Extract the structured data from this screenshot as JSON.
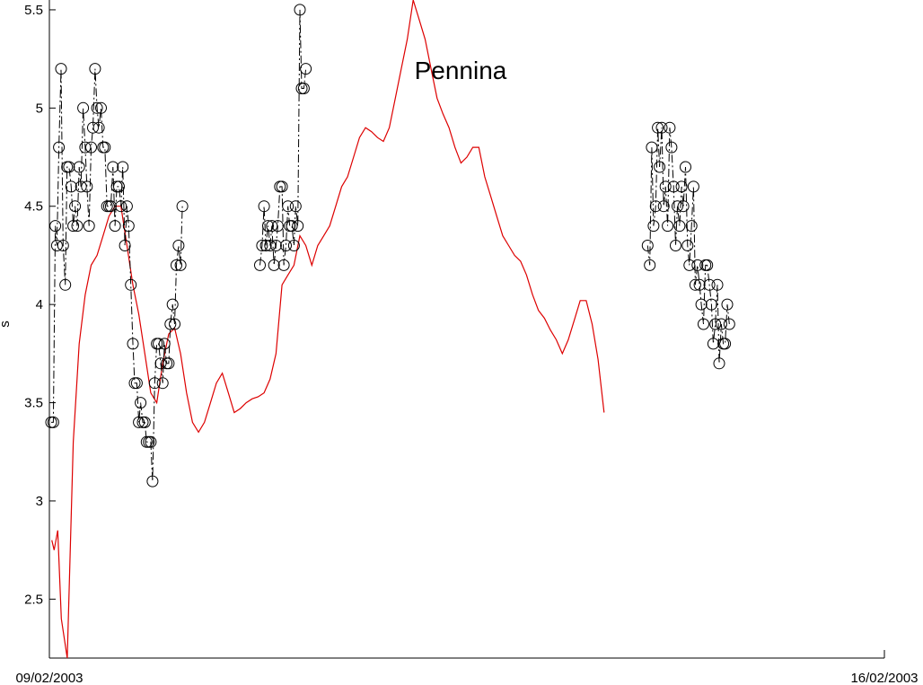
{
  "chart_data": {
    "type": "line",
    "title": "Pennina",
    "xlabel": "",
    "ylabel": "s",
    "xlim": [
      0,
      7
    ],
    "ylim": [
      2.2,
      5.55
    ],
    "x_tick_labels": [
      "09/02/2003",
      "16/02/2003"
    ],
    "y_ticks": [
      2.5,
      3,
      3.5,
      4,
      4.5,
      5,
      5.5
    ],
    "y_tick_labels": [
      "2.5",
      "3",
      "3.5",
      "4",
      "4.5",
      "5",
      "5.5"
    ],
    "grid": false,
    "colors": {
      "model": "#dd0000",
      "observed": "#000000"
    },
    "series": [
      {
        "style": "dash-dot with open circles",
        "segments": [
          [
            [
              0.015,
              3.4
            ],
            [
              0.033,
              3.4
            ],
            [
              0.05,
              4.4
            ],
            [
              0.063,
              4.3
            ],
            [
              0.08,
              4.8
            ],
            [
              0.098,
              5.2
            ],
            [
              0.115,
              4.3
            ],
            [
              0.133,
              4.1
            ],
            [
              0.148,
              4.7
            ],
            [
              0.165,
              4.7
            ],
            [
              0.183,
              4.6
            ],
            [
              0.2,
              4.4
            ],
            [
              0.215,
              4.5
            ],
            [
              0.233,
              4.4
            ],
            [
              0.25,
              4.7
            ],
            [
              0.265,
              4.6
            ],
            [
              0.283,
              5.0
            ],
            [
              0.3,
              4.8
            ],
            [
              0.315,
              4.6
            ],
            [
              0.333,
              4.4
            ],
            [
              0.35,
              4.8
            ],
            [
              0.365,
              4.9
            ],
            [
              0.383,
              5.2
            ],
            [
              0.4,
              5.0
            ],
            [
              0.415,
              4.9
            ],
            [
              0.433,
              5.0
            ],
            [
              0.45,
              4.8
            ],
            [
              0.465,
              4.8
            ],
            [
              0.483,
              4.5
            ],
            [
              0.5,
              4.5
            ],
            [
              0.515,
              4.5
            ],
            [
              0.533,
              4.7
            ],
            [
              0.55,
              4.4
            ],
            [
              0.565,
              4.6
            ],
            [
              0.583,
              4.6
            ],
            [
              0.6,
              4.5
            ],
            [
              0.615,
              4.7
            ],
            [
              0.633,
              4.3
            ],
            [
              0.65,
              4.5
            ],
            [
              0.665,
              4.4
            ],
            [
              0.683,
              4.1
            ],
            [
              0.7,
              3.8
            ],
            [
              0.715,
              3.6
            ],
            [
              0.733,
              3.6
            ],
            [
              0.75,
              3.4
            ],
            [
              0.765,
              3.5
            ],
            [
              0.783,
              3.4
            ],
            [
              0.8,
              3.4
            ],
            [
              0.815,
              3.3
            ],
            [
              0.833,
              3.3
            ],
            [
              0.85,
              3.3
            ],
            [
              0.865,
              3.1
            ],
            [
              0.883,
              3.6
            ],
            [
              0.9,
              3.8
            ],
            [
              0.915,
              3.8
            ],
            [
              0.933,
              3.7
            ],
            [
              0.95,
              3.6
            ],
            [
              0.965,
              3.8
            ],
            [
              0.983,
              3.7
            ],
            [
              1.0,
              3.7
            ],
            [
              1.015,
              3.9
            ],
            [
              1.033,
              4.0
            ],
            [
              1.05,
              3.9
            ],
            [
              1.065,
              4.2
            ],
            [
              1.083,
              4.3
            ],
            [
              1.1,
              4.2
            ],
            [
              1.115,
              4.5
            ]
          ],
          [
            [
              1.765,
              4.2
            ],
            [
              1.783,
              4.3
            ],
            [
              1.8,
              4.5
            ],
            [
              1.815,
              4.3
            ],
            [
              1.833,
              4.4
            ],
            [
              1.85,
              4.3
            ],
            [
              1.865,
              4.4
            ],
            [
              1.883,
              4.2
            ],
            [
              1.9,
              4.3
            ],
            [
              1.915,
              4.4
            ],
            [
              1.933,
              4.6
            ],
            [
              1.95,
              4.6
            ],
            [
              1.965,
              4.2
            ],
            [
              1.983,
              4.3
            ],
            [
              2.0,
              4.5
            ],
            [
              2.015,
              4.4
            ],
            [
              2.033,
              4.4
            ],
            [
              2.05,
              4.3
            ],
            [
              2.065,
              4.5
            ],
            [
              2.083,
              4.4
            ],
            [
              2.1,
              5.5
            ],
            [
              2.115,
              5.1
            ],
            [
              2.133,
              5.1
            ],
            [
              2.15,
              5.2
            ]
          ],
          [
            [
              5.015,
              4.3
            ],
            [
              5.033,
              4.2
            ],
            [
              5.05,
              4.8
            ],
            [
              5.065,
              4.4
            ],
            [
              5.083,
              4.5
            ],
            [
              5.1,
              4.9
            ],
            [
              5.115,
              4.7
            ],
            [
              5.133,
              4.9
            ],
            [
              5.15,
              4.5
            ],
            [
              5.165,
              4.6
            ],
            [
              5.183,
              4.4
            ],
            [
              5.2,
              4.9
            ],
            [
              5.215,
              4.8
            ],
            [
              5.233,
              4.6
            ],
            [
              5.25,
              4.3
            ],
            [
              5.265,
              4.5
            ],
            [
              5.283,
              4.4
            ],
            [
              5.3,
              4.6
            ],
            [
              5.315,
              4.5
            ],
            [
              5.333,
              4.7
            ],
            [
              5.35,
              4.3
            ],
            [
              5.365,
              4.2
            ],
            [
              5.383,
              4.4
            ],
            [
              5.4,
              4.6
            ],
            [
              5.415,
              4.1
            ],
            [
              5.433,
              4.2
            ],
            [
              5.45,
              4.1
            ],
            [
              5.465,
              4.0
            ],
            [
              5.483,
              3.9
            ],
            [
              5.5,
              4.2
            ],
            [
              5.515,
              4.2
            ],
            [
              5.533,
              4.1
            ],
            [
              5.55,
              4.0
            ],
            [
              5.565,
              3.8
            ],
            [
              5.583,
              3.9
            ],
            [
              5.6,
              4.1
            ],
            [
              5.615,
              3.7
            ],
            [
              5.633,
              3.9
            ],
            [
              5.65,
              3.8
            ],
            [
              5.665,
              3.8
            ],
            [
              5.683,
              4.0
            ],
            [
              5.7,
              3.9
            ]
          ]
        ]
      },
      {
        "style": "solid line",
        "color": "#dd0000",
        "points": [
          [
            0.02,
            2.8
          ],
          [
            0.04,
            2.75
          ],
          [
            0.07,
            2.85
          ],
          [
            0.1,
            2.4
          ],
          [
            0.15,
            2.2
          ],
          [
            0.2,
            3.3
          ],
          [
            0.25,
            3.8
          ],
          [
            0.3,
            4.05
          ],
          [
            0.35,
            4.2
          ],
          [
            0.4,
            4.25
          ],
          [
            0.45,
            4.35
          ],
          [
            0.5,
            4.45
          ],
          [
            0.55,
            4.5
          ],
          [
            0.6,
            4.5
          ],
          [
            0.65,
            4.3
          ],
          [
            0.7,
            4.1
          ],
          [
            0.75,
            3.95
          ],
          [
            0.8,
            3.75
          ],
          [
            0.85,
            3.55
          ],
          [
            0.9,
            3.5
          ],
          [
            0.95,
            3.7
          ],
          [
            1.0,
            3.85
          ],
          [
            1.05,
            3.88
          ],
          [
            1.1,
            3.75
          ],
          [
            1.15,
            3.55
          ],
          [
            1.2,
            3.4
          ],
          [
            1.25,
            3.35
          ],
          [
            1.3,
            3.4
          ],
          [
            1.35,
            3.5
          ],
          [
            1.4,
            3.6
          ],
          [
            1.45,
            3.65
          ],
          [
            1.5,
            3.55
          ],
          [
            1.55,
            3.45
          ],
          [
            1.6,
            3.47
          ],
          [
            1.65,
            3.5
          ],
          [
            1.7,
            3.52
          ],
          [
            1.75,
            3.53
          ],
          [
            1.8,
            3.55
          ],
          [
            1.85,
            3.62
          ],
          [
            1.9,
            3.75
          ],
          [
            1.95,
            4.1
          ],
          [
            2.0,
            4.15
          ],
          [
            2.05,
            4.2
          ],
          [
            2.1,
            4.35
          ],
          [
            2.15,
            4.3
          ],
          [
            2.2,
            4.2
          ],
          [
            2.25,
            4.3
          ],
          [
            2.3,
            4.35
          ],
          [
            2.35,
            4.4
          ],
          [
            2.4,
            4.5
          ],
          [
            2.45,
            4.6
          ],
          [
            2.5,
            4.65
          ],
          [
            2.55,
            4.75
          ],
          [
            2.6,
            4.85
          ],
          [
            2.65,
            4.9
          ],
          [
            2.7,
            4.88
          ],
          [
            2.75,
            4.85
          ],
          [
            2.8,
            4.83
          ],
          [
            2.85,
            4.9
          ],
          [
            2.9,
            5.05
          ],
          [
            2.95,
            5.2
          ],
          [
            3.0,
            5.35
          ],
          [
            3.05,
            5.55
          ],
          [
            3.1,
            5.45
          ],
          [
            3.15,
            5.35
          ],
          [
            3.2,
            5.2
          ],
          [
            3.25,
            5.05
          ],
          [
            3.3,
            4.97
          ],
          [
            3.35,
            4.9
          ],
          [
            3.4,
            4.8
          ],
          [
            3.45,
            4.72
          ],
          [
            3.5,
            4.75
          ],
          [
            3.55,
            4.8
          ],
          [
            3.6,
            4.8
          ],
          [
            3.65,
            4.65
          ],
          [
            3.7,
            4.55
          ],
          [
            3.75,
            4.45
          ],
          [
            3.8,
            4.35
          ],
          [
            3.85,
            4.3
          ],
          [
            3.9,
            4.25
          ],
          [
            3.95,
            4.22
          ],
          [
            4.0,
            4.15
          ],
          [
            4.05,
            4.05
          ],
          [
            4.1,
            3.97
          ],
          [
            4.15,
            3.93
          ],
          [
            4.2,
            3.87
          ],
          [
            4.25,
            3.82
          ],
          [
            4.3,
            3.75
          ],
          [
            4.35,
            3.82
          ],
          [
            4.4,
            3.92
          ],
          [
            4.45,
            4.02
          ],
          [
            4.5,
            4.02
          ],
          [
            4.55,
            3.9
          ],
          [
            4.6,
            3.72
          ],
          [
            4.65,
            3.45
          ]
        ]
      }
    ]
  }
}
